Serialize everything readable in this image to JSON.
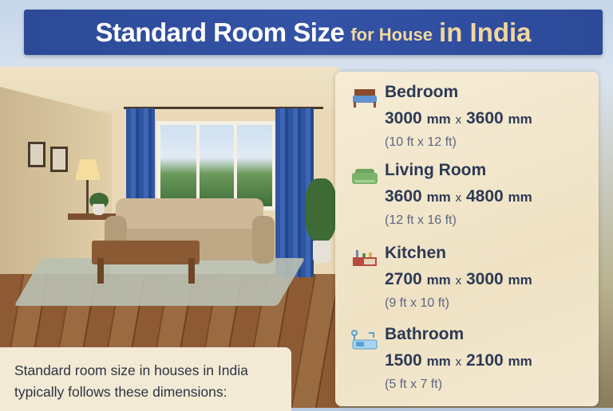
{
  "title": {
    "main": "Standard Room Size",
    "middle": "for House",
    "end": "in India"
  },
  "colors": {
    "banner": "#2f4d9c",
    "title_accent": "#f1d79e",
    "text": "#2d3a55"
  },
  "rooms": [
    {
      "name": "Bedroom",
      "icon": "bed-icon",
      "w_mm": "3000",
      "h_mm": "3600",
      "unit": "mm",
      "sep": "x",
      "ft": "(10 ft x 12 ft)"
    },
    {
      "name": "Living Room",
      "icon": "sofa-icon",
      "w_mm": "3600",
      "h_mm": "4800",
      "unit": "mm",
      "sep": "x",
      "ft": "(12 ft x 16 ft)"
    },
    {
      "name": "Kitchen",
      "icon": "kitchen-counter-icon",
      "w_mm": "2700",
      "h_mm": "3000",
      "unit": "mm",
      "sep": "x",
      "ft": "(9 ft x 10 ft)"
    },
    {
      "name": "Bathroom",
      "icon": "bathtub-icon",
      "w_mm": "1500",
      "h_mm": "2100",
      "unit": "mm",
      "sep": "x",
      "ft": "(5 ft x 7 ft)"
    }
  ],
  "note": {
    "line1": "Standard room size in houses in India",
    "line2": "typically follows these dimensions:"
  }
}
